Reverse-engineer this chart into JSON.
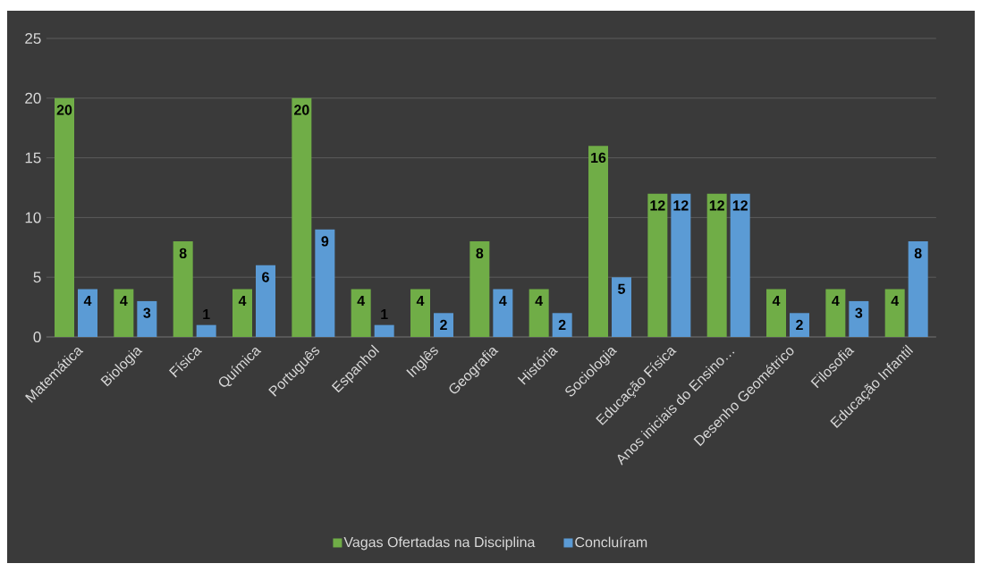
{
  "chart_data": {
    "type": "bar",
    "categories": [
      "Matemática",
      "Biologia",
      "Física",
      "Química",
      "Português",
      "Espanhol",
      "Inglês",
      "Geografia",
      "História",
      "Sociologia",
      "Educação Física",
      "Anos iniciais do Ensino…",
      "Desenho Geométrico",
      "Filosofia",
      "Educação Infantil"
    ],
    "series": [
      {
        "name": "Vagas Ofertadas na Disciplina",
        "color": "#70ad47",
        "values": [
          20,
          4,
          8,
          4,
          20,
          4,
          4,
          8,
          4,
          16,
          12,
          12,
          4,
          4,
          4
        ]
      },
      {
        "name": "Concluíram",
        "color": "#5b9bd5",
        "values": [
          4,
          3,
          1,
          6,
          9,
          1,
          2,
          4,
          2,
          5,
          12,
          12,
          2,
          3,
          8
        ]
      }
    ],
    "ylim": [
      0,
      25
    ],
    "yticks": [
      0,
      5,
      10,
      15,
      20,
      25
    ],
    "grid": "y",
    "legend": "bottom",
    "data_labels": true
  }
}
